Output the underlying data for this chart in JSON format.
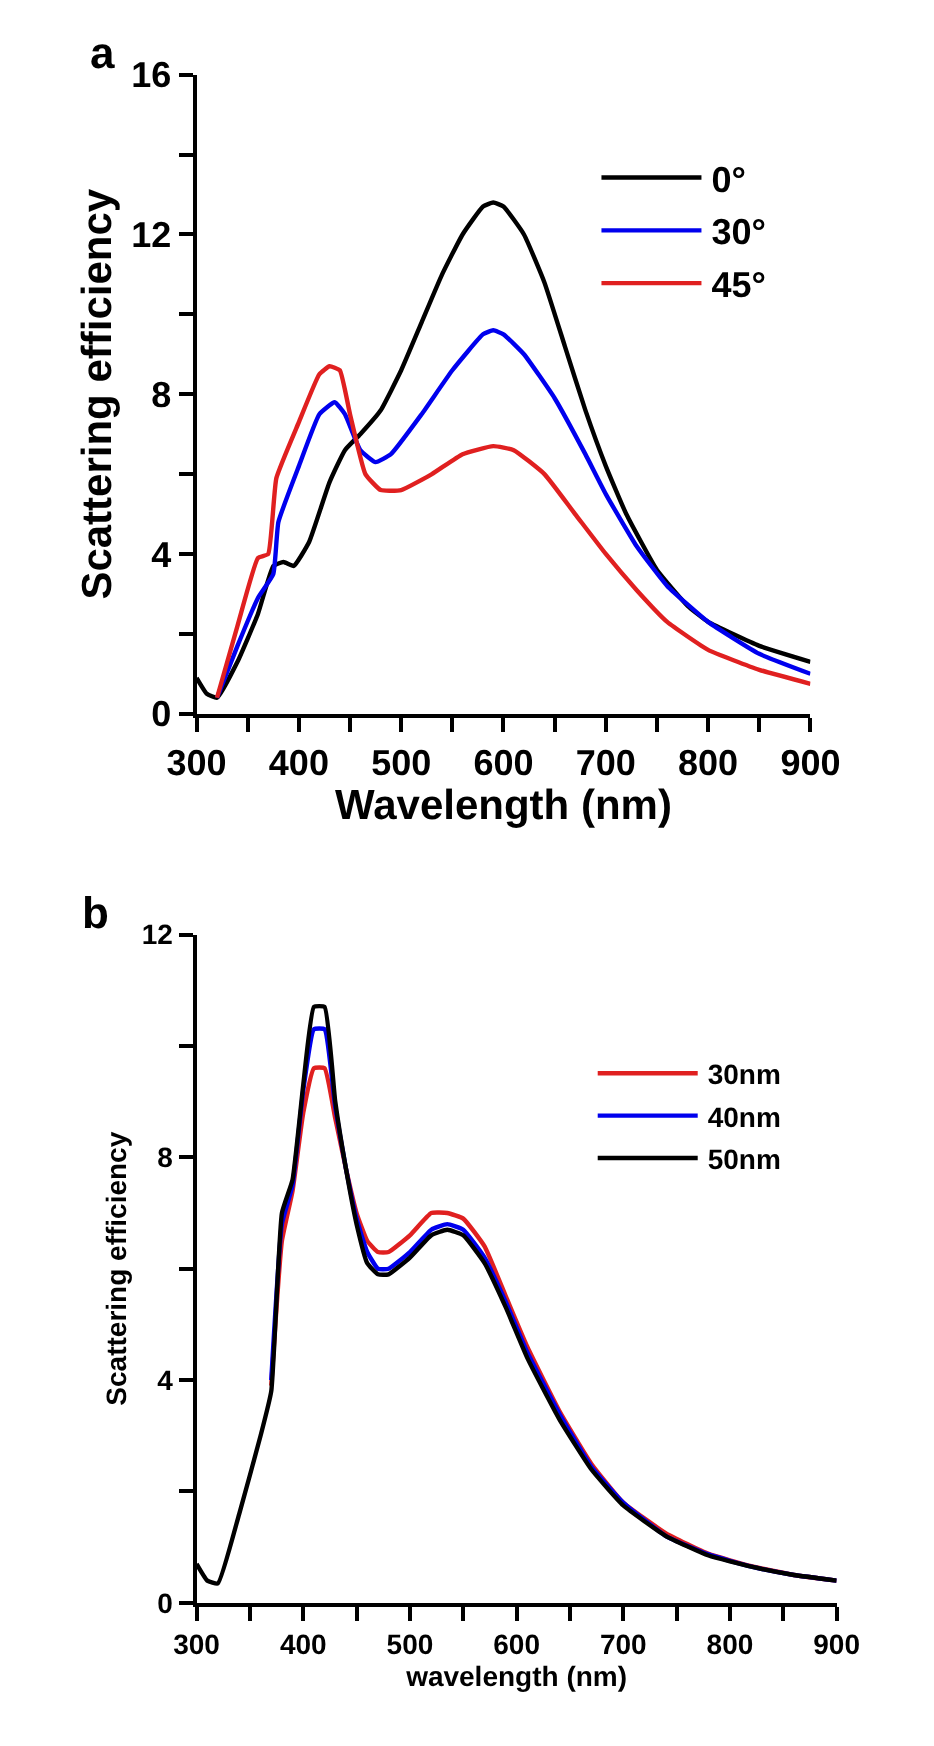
{
  "chart_data": [
    {
      "type": "line",
      "title": "a",
      "xlabel": "Wavelength (nm)",
      "ylabel": "Scattering efficiency",
      "xlim": [
        300,
        900
      ],
      "ylim": [
        0,
        16
      ],
      "xticks": [
        300,
        {
          "value": 350,
          "label": null
        },
        400,
        {
          "value": 450,
          "label": null
        },
        500,
        {
          "value": 550,
          "label": null
        },
        600,
        {
          "value": 650,
          "label": null
        },
        700,
        {
          "value": 750,
          "label": null
        },
        800,
        {
          "value": 850,
          "label": null
        },
        900
      ],
      "yticks": [
        0,
        {
          "value": 2,
          "label": null
        },
        4,
        {
          "value": 6,
          "label": null
        },
        8,
        {
          "value": 10,
          "label": null
        },
        12,
        {
          "value": 14,
          "label": null
        },
        16
      ],
      "legend": "top right",
      "series": [
        {
          "name": "0°",
          "color": "#000000",
          "x": [
            300,
            310,
            320,
            340,
            360,
            375,
            385,
            395,
            410,
            430,
            445,
            460,
            480,
            500,
            520,
            540,
            560,
            580,
            590,
            600,
            620,
            640,
            660,
            680,
            700,
            720,
            750,
            780,
            800,
            850,
            900
          ],
          "values": [
            0.9,
            0.5,
            0.4,
            1.3,
            2.5,
            3.7,
            3.8,
            3.7,
            4.3,
            5.8,
            6.6,
            7.0,
            7.6,
            8.6,
            9.8,
            11.0,
            12.0,
            12.7,
            12.8,
            12.7,
            12.0,
            10.8,
            9.2,
            7.6,
            6.2,
            5.0,
            3.6,
            2.7,
            2.3,
            1.7,
            1.3
          ]
        },
        {
          "name": "30°",
          "color": "#0000ee",
          "x": [
            320,
            340,
            360,
            375,
            380,
            400,
            420,
            435,
            445,
            460,
            475,
            490,
            520,
            550,
            580,
            590,
            600,
            620,
            650,
            680,
            700,
            730,
            760,
            800,
            850,
            900
          ],
          "values": [
            0.4,
            1.7,
            2.9,
            3.5,
            4.8,
            6.2,
            7.5,
            7.8,
            7.5,
            6.6,
            6.3,
            6.5,
            7.5,
            8.6,
            9.5,
            9.6,
            9.5,
            9.0,
            7.9,
            6.5,
            5.5,
            4.2,
            3.2,
            2.3,
            1.5,
            1.0
          ]
        },
        {
          "name": "45°",
          "color": "#e02020",
          "x": [
            320,
            340,
            360,
            370,
            378,
            400,
            420,
            430,
            440,
            450,
            465,
            480,
            500,
            530,
            560,
            590,
            610,
            640,
            670,
            700,
            730,
            760,
            800,
            850,
            900
          ],
          "values": [
            0.4,
            2.2,
            3.9,
            4.0,
            5.9,
            7.3,
            8.5,
            8.7,
            8.6,
            7.5,
            6.0,
            5.6,
            5.6,
            6.0,
            6.5,
            6.7,
            6.6,
            6.0,
            5.0,
            4.0,
            3.1,
            2.3,
            1.6,
            1.1,
            0.75
          ]
        }
      ]
    },
    {
      "type": "line",
      "title": "b",
      "xlabel": "wavelength (nm)",
      "ylabel": "Scattering efficiency",
      "xlim": [
        300,
        900
      ],
      "ylim": [
        0,
        12
      ],
      "xticks": [
        300,
        {
          "value": 350,
          "label": null
        },
        400,
        {
          "value": 450,
          "label": null
        },
        500,
        {
          "value": 550,
          "label": null
        },
        600,
        {
          "value": 650,
          "label": null
        },
        700,
        {
          "value": 750,
          "label": null
        },
        800,
        {
          "value": 850,
          "label": null
        },
        900
      ],
      "yticks": [
        0,
        {
          "value": 2,
          "label": null
        },
        4,
        {
          "value": 6,
          "label": null
        },
        8,
        {
          "value": 10,
          "label": null
        },
        12
      ],
      "legend": "top right",
      "series": [
        {
          "name": "30nm",
          "color": "#e02020",
          "x": [
            370,
            380,
            390,
            400,
            410,
            420,
            430,
            440,
            450,
            460,
            470,
            480,
            500,
            520,
            535,
            550,
            570,
            590,
            610,
            640,
            670,
            700,
            740,
            780,
            820,
            860,
            900
          ],
          "values": [
            3.9,
            6.5,
            7.4,
            8.8,
            9.6,
            9.6,
            8.7,
            7.8,
            7.0,
            6.5,
            6.3,
            6.3,
            6.6,
            7.0,
            7.0,
            6.9,
            6.4,
            5.5,
            4.6,
            3.45,
            2.5,
            1.8,
            1.25,
            0.88,
            0.66,
            0.5,
            0.4
          ]
        },
        {
          "name": "40nm",
          "color": "#0000ee",
          "x": [
            370,
            380,
            390,
            400,
            410,
            420,
            430,
            440,
            450,
            460,
            470,
            480,
            500,
            520,
            535,
            550,
            570,
            590,
            610,
            640,
            670,
            700,
            740,
            780,
            820,
            860,
            900
          ],
          "values": [
            4.0,
            6.8,
            7.5,
            9.2,
            10.3,
            10.3,
            8.9,
            7.8,
            6.9,
            6.3,
            6.0,
            6.0,
            6.3,
            6.7,
            6.8,
            6.7,
            6.2,
            5.4,
            4.5,
            3.4,
            2.45,
            1.8,
            1.2,
            0.87,
            0.65,
            0.5,
            0.4
          ]
        },
        {
          "name": "50nm",
          "color": "#000000",
          "x": [
            300,
            310,
            320,
            340,
            360,
            370,
            380,
            390,
            400,
            410,
            420,
            430,
            440,
            450,
            460,
            470,
            480,
            500,
            520,
            535,
            550,
            570,
            590,
            610,
            640,
            670,
            700,
            740,
            780,
            820,
            860,
            900
          ],
          "values": [
            0.7,
            0.4,
            0.35,
            1.6,
            3.0,
            3.8,
            7.0,
            7.6,
            9.3,
            10.7,
            10.7,
            9.0,
            7.8,
            6.8,
            6.1,
            5.9,
            5.9,
            6.2,
            6.6,
            6.7,
            6.6,
            6.1,
            5.3,
            4.4,
            3.3,
            2.4,
            1.75,
            1.2,
            0.85,
            0.65,
            0.5,
            0.4
          ]
        }
      ]
    }
  ]
}
